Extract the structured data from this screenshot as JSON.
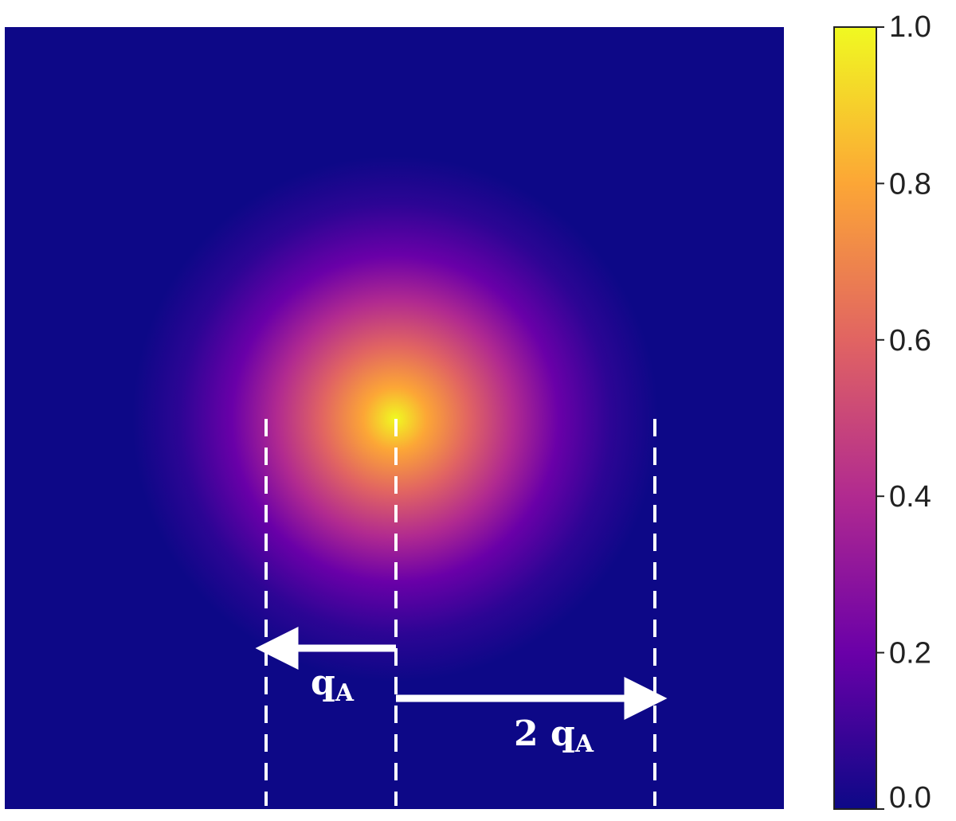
{
  "chart_data": {
    "type": "heatmap",
    "title": "",
    "xlabel": "",
    "ylabel": "",
    "colormap": "plasma",
    "colormap_stops": [
      "#0d0887",
      "#6a00a8",
      "#b12a90",
      "#e16462",
      "#fca636",
      "#f0f921"
    ],
    "background_color": "#0d0887",
    "peak_value": 1.0,
    "distribution": "2D Gaussian centered on the marked center line",
    "colorbar": {
      "range": [
        0.0,
        1.0
      ],
      "ticks": [
        "0.0",
        "0.2",
        "0.4",
        "0.6",
        "0.8",
        "1.0"
      ],
      "position": "right"
    },
    "annotations": {
      "center_line": {
        "style": "dashed",
        "color": "#ffffff"
      },
      "left_line": {
        "style": "dashed",
        "color": "#ffffff"
      },
      "right_line": {
        "style": "dashed",
        "color": "#ffffff"
      },
      "arrow_left": {
        "direction": "left",
        "label_main": "q",
        "label_sub": "A"
      },
      "arrow_right": {
        "direction": "right",
        "label_prefix": "2 ",
        "label_main": "q",
        "label_sub": "A"
      }
    }
  }
}
